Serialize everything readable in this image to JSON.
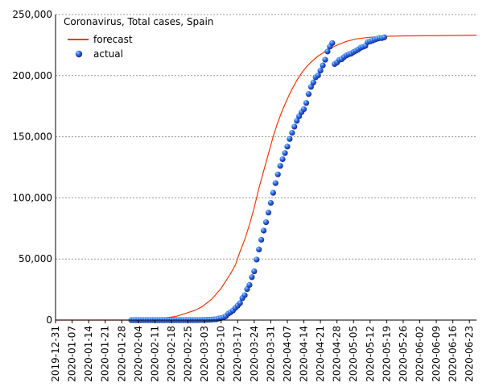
{
  "chart_data": {
    "type": "line",
    "title": "Coronavirus, Total cases, Spain",
    "xlabel": "",
    "ylabel": "",
    "x_axis": {
      "start": "2019-12-31",
      "end": "2020-06-26",
      "tick_labels": [
        "2019-12-31",
        "2020-01-07",
        "2020-01-14",
        "2020-01-21",
        "2020-01-28",
        "2020-02-04",
        "2020-02-11",
        "2020-02-18",
        "2020-02-25",
        "2020-03-03",
        "2020-03-10",
        "2020-03-17",
        "2020-03-24",
        "2020-03-31",
        "2020-04-07",
        "2020-04-14",
        "2020-04-21",
        "2020-04-28",
        "2020-05-05",
        "2020-05-12",
        "2020-05-19",
        "2020-05-26",
        "2020-06-02",
        "2020-06-09",
        "2020-06-16",
        "2020-06-23"
      ]
    },
    "ylim": [
      0,
      250000
    ],
    "y_ticks": [
      {
        "value": 0,
        "label": "0"
      },
      {
        "value": 50000,
        "label": "50,000"
      },
      {
        "value": 100000,
        "label": "100,000"
      },
      {
        "value": 150000,
        "label": "150,000"
      },
      {
        "value": 200000,
        "label": "200,000"
      },
      {
        "value": 250000,
        "label": "250,000"
      }
    ],
    "grid": "horizontal dashed",
    "legend_position": "top-left",
    "series": [
      {
        "name": "forecast",
        "style": "line",
        "color": "#ff3300",
        "points": [
          [
            "2019-12-31",
            0
          ],
          [
            "2020-01-28",
            0
          ],
          [
            "2020-02-01",
            0
          ],
          [
            "2020-02-06",
            500
          ],
          [
            "2020-02-11",
            1000
          ],
          [
            "2020-02-16",
            2000
          ],
          [
            "2020-02-20",
            3000
          ],
          [
            "2020-02-24",
            5500
          ],
          [
            "2020-02-28",
            8000
          ],
          [
            "2020-03-02",
            11000
          ],
          [
            "2020-03-06",
            17000
          ],
          [
            "2020-03-10",
            26000
          ],
          [
            "2020-03-14",
            38000
          ],
          [
            "2020-03-16",
            45000
          ],
          [
            "2020-03-18",
            56000
          ],
          [
            "2020-03-20",
            66000
          ],
          [
            "2020-03-22",
            78000
          ],
          [
            "2020-03-24",
            92000
          ],
          [
            "2020-03-26",
            108000
          ],
          [
            "2020-03-28",
            122000
          ],
          [
            "2020-03-30",
            136000
          ],
          [
            "2020-04-01",
            150000
          ],
          [
            "2020-04-03",
            162000
          ],
          [
            "2020-04-05",
            172000
          ],
          [
            "2020-04-07",
            181000
          ],
          [
            "2020-04-09",
            189000
          ],
          [
            "2020-04-11",
            196000
          ],
          [
            "2020-04-13",
            202000
          ],
          [
            "2020-04-15",
            207000
          ],
          [
            "2020-04-17",
            211000
          ],
          [
            "2020-04-20",
            216000
          ],
          [
            "2020-04-24",
            221000
          ],
          [
            "2020-04-28",
            225000
          ],
          [
            "2020-05-02",
            228000
          ],
          [
            "2020-05-06",
            230000
          ],
          [
            "2020-05-10",
            231000
          ],
          [
            "2020-05-16",
            232000
          ],
          [
            "2020-05-26",
            232500
          ],
          [
            "2020-06-26",
            233000
          ]
        ]
      },
      {
        "name": "actual",
        "style": "scatter",
        "color": "#1a44cc",
        "points": [
          [
            "2020-02-01",
            1
          ],
          [
            "2020-02-02",
            1
          ],
          [
            "2020-02-03",
            1
          ],
          [
            "2020-02-04",
            1
          ],
          [
            "2020-02-05",
            1
          ],
          [
            "2020-02-06",
            1
          ],
          [
            "2020-02-07",
            1
          ],
          [
            "2020-02-08",
            1
          ],
          [
            "2020-02-09",
            2
          ],
          [
            "2020-02-10",
            2
          ],
          [
            "2020-02-11",
            2
          ],
          [
            "2020-02-12",
            2
          ],
          [
            "2020-02-13",
            2
          ],
          [
            "2020-02-14",
            2
          ],
          [
            "2020-02-15",
            2
          ],
          [
            "2020-02-16",
            2
          ],
          [
            "2020-02-17",
            2
          ],
          [
            "2020-02-18",
            2
          ],
          [
            "2020-02-19",
            2
          ],
          [
            "2020-02-20",
            2
          ],
          [
            "2020-02-21",
            2
          ],
          [
            "2020-02-22",
            2
          ],
          [
            "2020-02-23",
            2
          ],
          [
            "2020-02-24",
            3
          ],
          [
            "2020-02-25",
            9
          ],
          [
            "2020-02-26",
            13
          ],
          [
            "2020-02-27",
            23
          ],
          [
            "2020-02-28",
            32
          ],
          [
            "2020-02-29",
            45
          ],
          [
            "2020-03-01",
            84
          ],
          [
            "2020-03-02",
            120
          ],
          [
            "2020-03-03",
            165
          ],
          [
            "2020-03-04",
            228
          ],
          [
            "2020-03-05",
            282
          ],
          [
            "2020-03-06",
            401
          ],
          [
            "2020-03-07",
            525
          ],
          [
            "2020-03-08",
            674
          ],
          [
            "2020-03-09",
            1231
          ],
          [
            "2020-03-10",
            1695
          ],
          [
            "2020-03-11",
            2277
          ],
          [
            "2020-03-12",
            3146
          ],
          [
            "2020-03-13",
            5232
          ],
          [
            "2020-03-14",
            6391
          ],
          [
            "2020-03-15",
            7798
          ],
          [
            "2020-03-16",
            9942
          ],
          [
            "2020-03-17",
            11748
          ],
          [
            "2020-03-18",
            13910
          ],
          [
            "2020-03-19",
            17963
          ],
          [
            "2020-03-20",
            20410
          ],
          [
            "2020-03-21",
            25374
          ],
          [
            "2020-03-22",
            28768
          ],
          [
            "2020-03-23",
            35136
          ],
          [
            "2020-03-24",
            39885
          ],
          [
            "2020-03-25",
            49515
          ],
          [
            "2020-03-26",
            57786
          ],
          [
            "2020-03-27",
            65719
          ],
          [
            "2020-03-28",
            73235
          ],
          [
            "2020-03-29",
            80110
          ],
          [
            "2020-03-30",
            87956
          ],
          [
            "2020-03-31",
            95923
          ],
          [
            "2020-04-01",
            104118
          ],
          [
            "2020-04-02",
            112065
          ],
          [
            "2020-04-03",
            119199
          ],
          [
            "2020-04-04",
            126168
          ],
          [
            "2020-04-05",
            131646
          ],
          [
            "2020-04-06",
            136675
          ],
          [
            "2020-04-07",
            141942
          ],
          [
            "2020-04-08",
            148220
          ],
          [
            "2020-04-09",
            153222
          ],
          [
            "2020-04-10",
            158273
          ],
          [
            "2020-04-11",
            163027
          ],
          [
            "2020-04-12",
            166831
          ],
          [
            "2020-04-13",
            170099
          ],
          [
            "2020-04-14",
            172541
          ],
          [
            "2020-04-15",
            177644
          ],
          [
            "2020-04-16",
            184948
          ],
          [
            "2020-04-17",
            190839
          ],
          [
            "2020-04-18",
            194416
          ],
          [
            "2020-04-19",
            198674
          ],
          [
            "2020-04-20",
            200210
          ],
          [
            "2020-04-21",
            204178
          ],
          [
            "2020-04-22",
            208389
          ],
          [
            "2020-04-23",
            213024
          ],
          [
            "2020-04-24",
            219764
          ],
          [
            "2020-04-25",
            223759
          ],
          [
            "2020-04-26",
            226629
          ],
          [
            "2020-04-27",
            209465
          ],
          [
            "2020-04-28",
            210773
          ],
          [
            "2020-04-29",
            212917
          ],
          [
            "2020-04-30",
            213435
          ],
          [
            "2020-05-01",
            215216
          ],
          [
            "2020-05-02",
            216582
          ],
          [
            "2020-05-03",
            217466
          ],
          [
            "2020-05-04",
            218011
          ],
          [
            "2020-05-05",
            219329
          ],
          [
            "2020-05-06",
            220325
          ],
          [
            "2020-05-07",
            221447
          ],
          [
            "2020-05-08",
            222857
          ],
          [
            "2020-05-09",
            223578
          ],
          [
            "2020-05-10",
            224350
          ],
          [
            "2020-05-11",
            227436
          ],
          [
            "2020-05-12",
            228030
          ],
          [
            "2020-05-13",
            228691
          ],
          [
            "2020-05-14",
            229540
          ],
          [
            "2020-05-15",
            230183
          ],
          [
            "2020-05-16",
            230698
          ],
          [
            "2020-05-17",
            230698
          ],
          [
            "2020-05-18",
            231350
          ]
        ]
      }
    ]
  }
}
